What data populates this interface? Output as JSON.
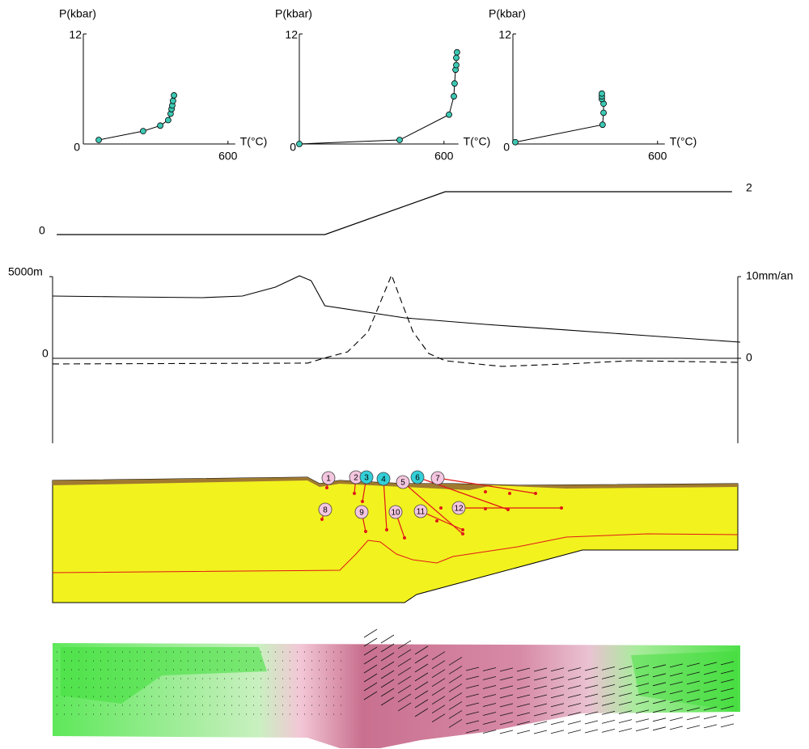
{
  "chart_data": [
    {
      "type": "line",
      "ylabel": "P(kbar)",
      "xlabel": "T(°C)",
      "x": [
        64,
        248,
        319,
        352,
        362,
        366,
        369,
        372,
        376
      ],
      "values": [
        0.44,
        1.4,
        2.0,
        2.6,
        3.3,
        3.8,
        4.2,
        4.7,
        5.3
      ],
      "color": "#3cc8b4",
      "xlim": [
        0,
        630
      ],
      "ylim": [
        0,
        12
      ],
      "xticks": [
        600
      ],
      "yticks": [
        0,
        12
      ]
    },
    {
      "type": "line",
      "ylabel": "P(kbar)",
      "xlabel": "T(°C)",
      "x": [
        0,
        416,
        621,
        641,
        644,
        648,
        651,
        651,
        654
      ],
      "values": [
        0,
        0.44,
        3.2,
        5.2,
        6.6,
        8.1,
        8.6,
        9.4,
        10.0
      ],
      "color": "#3cc8b4",
      "xlim": [
        0,
        660
      ],
      "ylim": [
        0,
        12
      ],
      "xticks": [
        600
      ],
      "yticks": [
        0,
        12
      ]
    },
    {
      "type": "line",
      "ylabel": "P(kbar)",
      "xlabel": "T(°C)",
      "x": [
        10,
        372,
        376,
        376,
        369,
        369,
        369
      ],
      "values": [
        0.2,
        2.1,
        3.4,
        4.4,
        4.9,
        5.2,
        5.5
      ],
      "color": "#3cc8b4",
      "xlim": [
        0,
        630
      ],
      "ylim": [
        0,
        12
      ],
      "xticks": [
        600
      ],
      "yticks": [
        0,
        12
      ]
    },
    {
      "type": "profile",
      "x": [
        6,
        396,
        571,
        988
      ],
      "values": [
        0,
        0,
        2,
        2
      ],
      "color": "#000000",
      "xlim": [
        0,
        1000
      ],
      "ylim": [
        0,
        2
      ],
      "yticks": [
        0,
        2
      ]
    },
    {
      "type": "dual-line",
      "xlim": [
        0,
        1000
      ],
      "ylim": [
        -5200,
        5000
      ],
      "yticks": [
        {
          "value": 5000,
          "label": "5000m"
        },
        0
      ],
      "y2lim": [
        -10.4,
        10
      ],
      "y2ticks": [
        {
          "value": 10,
          "label": "10mm/an"
        },
        0
      ],
      "series": [
        {
          "color": "#000000",
          "line_style": "solid",
          "x": [
            0,
            100,
            218,
            276,
            324,
            359,
            376,
            396,
            512,
            629,
            747,
            865,
            1000
          ],
          "values": [
            3812,
            3762,
            3713,
            3812,
            4356,
            5049,
            4752,
            3218,
            2475,
            2079,
            1733,
            1386,
            990
          ]
        },
        {
          "color": "#000000",
          "line_style": "dashed",
          "axis": "y2",
          "x": [
            0,
            371,
            394,
            429,
            459,
            476,
            493,
            506,
            524,
            547,
            571,
            653,
            747,
            841,
            924,
            1000
          ],
          "values": [
            -0.69,
            -0.59,
            0,
            0.79,
            3.27,
            6.73,
            10.2,
            7.23,
            3.27,
            0.59,
            -0.3,
            -0.99,
            -0.69,
            -0.3,
            -0.4,
            -0.5
          ]
        }
      ]
    },
    {
      "type": "cross-section",
      "markers": [
        {
          "label": "1",
          "color": "#f4c6e0"
        },
        {
          "label": "2",
          "color": "#f4c6e0"
        },
        {
          "label": "3",
          "color": "#33cfd8"
        },
        {
          "label": "4",
          "color": "#33cfd8"
        },
        {
          "label": "5",
          "color": "#f4c6e0"
        },
        {
          "label": "6",
          "color": "#33cfd8"
        },
        {
          "label": "7",
          "color": "#f4c6e0"
        },
        {
          "label": "8",
          "color": "#f4c6e0"
        },
        {
          "label": "9",
          "color": "#f4c6e0"
        },
        {
          "label": "10",
          "color": "#f4c6e0"
        },
        {
          "label": "11",
          "color": "#f4c6e0"
        },
        {
          "label": "12",
          "color": "#f4c6e0"
        }
      ]
    }
  ]
}
